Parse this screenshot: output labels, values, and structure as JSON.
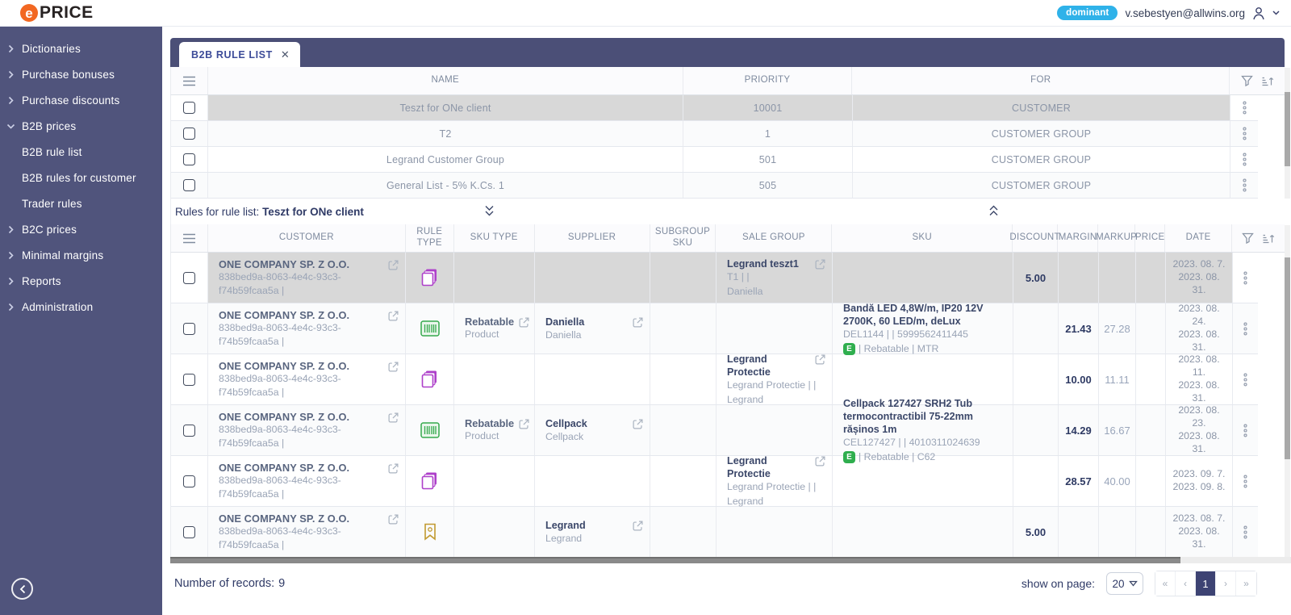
{
  "header": {
    "logo_e": "e",
    "logo_rest": "PRICE",
    "badge": "dominant",
    "user_email": "v.sebestyen@allwins.org"
  },
  "sidebar": {
    "items": [
      {
        "label": "Dictionaries",
        "state": "collapsed"
      },
      {
        "label": "Purchase bonuses",
        "state": "collapsed"
      },
      {
        "label": "Purchase discounts",
        "state": "collapsed"
      },
      {
        "label": "B2B prices",
        "state": "expanded",
        "children": [
          {
            "label": "B2B rule list"
          },
          {
            "label": "B2B rules for customer"
          },
          {
            "label": "Trader rules"
          }
        ]
      },
      {
        "label": "B2C prices",
        "state": "collapsed"
      },
      {
        "label": "Minimal margins",
        "state": "collapsed"
      },
      {
        "label": "Reports",
        "state": "collapsed"
      },
      {
        "label": "Administration",
        "state": "collapsed"
      }
    ]
  },
  "tab": {
    "label": "B2B RULE LIST"
  },
  "rule_list_table": {
    "columns": [
      "NAME",
      "PRIORITY",
      "FOR"
    ],
    "rows": [
      {
        "name": "Teszt for ONe client",
        "priority": "10001",
        "for": "CUSTOMER",
        "selected": true
      },
      {
        "name": "T2",
        "priority": "1",
        "for": "CUSTOMER GROUP",
        "selected": false
      },
      {
        "name": "Legrand Customer Group",
        "priority": "501",
        "for": "CUSTOMER GROUP",
        "selected": false
      },
      {
        "name": "General List - 5% K.Cs. 1",
        "priority": "505",
        "for": "CUSTOMER GROUP",
        "selected": false
      }
    ]
  },
  "rules_bar": {
    "label": "Rules for rule list:",
    "value": "Teszt for ONe client"
  },
  "rules_table": {
    "columns": [
      "CUSTOMER",
      "RULE TYPE",
      "SKU TYPE",
      "SUPPLIER",
      "SUBGROUP SKU",
      "SALE GROUP",
      "SKU",
      "DISCOUNT",
      "MARGIN",
      "MARKUP",
      "PRICE",
      "DATE"
    ],
    "rows": [
      {
        "selected": true,
        "customer": {
          "name": "ONE COMPANY SP. Z O.O.",
          "id": "838bed9a-8063-4e4c-93c3-f74b59fcaa5a |"
        },
        "rule_type": "sale_group",
        "sku_type": null,
        "supplier": null,
        "subgroup_sku": null,
        "sale_group": {
          "title": "Legrand teszt1",
          "line2": "T1 |  |",
          "line3": "Daniella"
        },
        "sku": null,
        "discount": "5.00",
        "margin": "",
        "markup": "",
        "price": "",
        "dates": [
          "2023. 08. 7.",
          "2023. 08. 31."
        ]
      },
      {
        "selected": false,
        "customer": {
          "name": "ONE COMPANY SP. Z O.O.",
          "id": "838bed9a-8063-4e4c-93c3-f74b59fcaa5a |"
        },
        "rule_type": "sku",
        "sku_type": {
          "line1": "Rebatable",
          "line2": "Product"
        },
        "supplier": {
          "line1": "Daniella",
          "line2": "Daniella"
        },
        "subgroup_sku": null,
        "sale_group": null,
        "sku": {
          "title": "Bandă LED 4,8W/m, IP20 12V 2700K, 60 LED/m, deLux",
          "codes": "DEL1144 |  | 5999562411445",
          "badge": "E",
          "tags": "| Rebatable | MTR"
        },
        "discount": "",
        "margin": "21.43",
        "markup": "27.28",
        "price": "",
        "dates": [
          "2023. 08. 24.",
          "2023. 08. 31."
        ]
      },
      {
        "selected": false,
        "customer": {
          "name": "ONE COMPANY SP. Z O.O.",
          "id": "838bed9a-8063-4e4c-93c3-f74b59fcaa5a |"
        },
        "rule_type": "sale_group",
        "sku_type": null,
        "supplier": null,
        "subgroup_sku": null,
        "sale_group": {
          "title": "Legrand Protectie",
          "line2": "Legrand Protectie |  |",
          "line3": "Legrand"
        },
        "sku": null,
        "discount": "",
        "margin": "10.00",
        "markup": "11.11",
        "price": "",
        "dates": [
          "2023. 08. 11.",
          "2023. 08. 31."
        ]
      },
      {
        "selected": false,
        "customer": {
          "name": "ONE COMPANY SP. Z O.O.",
          "id": "838bed9a-8063-4e4c-93c3-f74b59fcaa5a |"
        },
        "rule_type": "sku",
        "sku_type": {
          "line1": "Rebatable",
          "line2": "Product"
        },
        "supplier": {
          "line1": "Cellpack",
          "line2": "Cellpack"
        },
        "subgroup_sku": null,
        "sale_group": null,
        "sku": {
          "title": "Cellpack 127427 SRH2 Tub termocontractibil 75-22mm rășinos 1m",
          "codes": "CEL127427 |  | 4010311024639",
          "badge": "E",
          "tags": "| Rebatable | C62"
        },
        "discount": "",
        "margin": "14.29",
        "markup": "16.67",
        "price": "",
        "dates": [
          "2023. 08. 23.",
          "2023. 08. 31."
        ]
      },
      {
        "selected": false,
        "customer": {
          "name": "ONE COMPANY SP. Z O.O.",
          "id": "838bed9a-8063-4e4c-93c3-f74b59fcaa5a |"
        },
        "rule_type": "sale_group",
        "sku_type": null,
        "supplier": null,
        "subgroup_sku": null,
        "sale_group": {
          "title": "Legrand Protectie",
          "line2": "Legrand Protectie |  |",
          "line3": "Legrand"
        },
        "sku": null,
        "discount": "",
        "margin": "28.57",
        "markup": "40.00",
        "price": "",
        "dates": [
          "2023. 09. 7.",
          "2023. 09. 8."
        ]
      },
      {
        "selected": false,
        "customer": {
          "name": "ONE COMPANY SP. Z O.O.",
          "id": "838bed9a-8063-4e4c-93c3-f74b59fcaa5a |"
        },
        "rule_type": "supplier",
        "sku_type": null,
        "supplier": {
          "line1": "Legrand",
          "line2": "Legrand"
        },
        "subgroup_sku": null,
        "sale_group": null,
        "sku": null,
        "discount": "5.00",
        "margin": "",
        "markup": "",
        "price": "",
        "dates": [
          "2023. 08. 7.",
          "2023. 08. 31."
        ]
      }
    ]
  },
  "footer": {
    "records_label": "Number of records:",
    "records_value": "9",
    "show_on_page_label": "show on page:",
    "page_size": "20",
    "pagination": [
      "«",
      "‹",
      "1",
      "›",
      "»"
    ],
    "active_page": "1"
  }
}
